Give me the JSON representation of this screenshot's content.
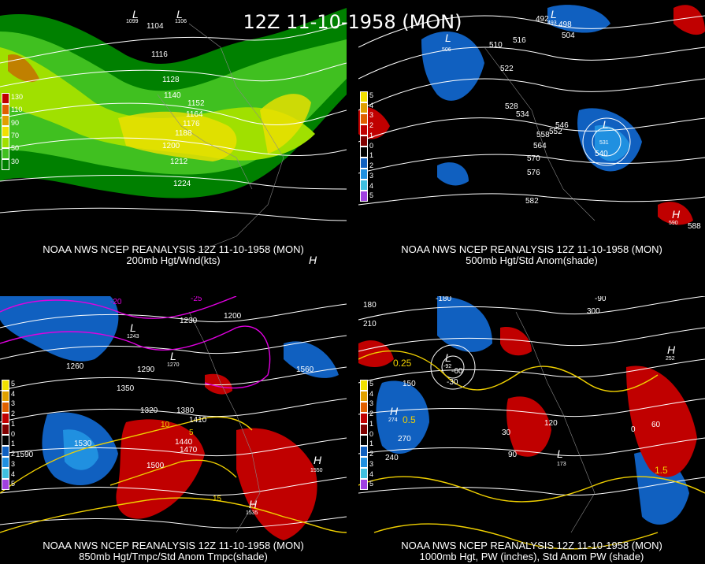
{
  "title": "12Z 11-10-1958 (MON)",
  "panels": [
    {
      "id": "p1",
      "caption_line1": "NOAA NWS NCEP REANALYSIS 12Z 11-10-1958 (MON)",
      "caption_line2": "200mb Hgt/Wnd(kts)",
      "legend": {
        "colors": [
          "#c00000",
          "#e06000",
          "#e0a000",
          "#f0e000",
          "#a0e000",
          "#40c020",
          "#008000"
        ],
        "ticks": [
          "130",
          "110",
          "90",
          "70",
          "50",
          "30"
        ]
      },
      "contour_labels": [
        "1104",
        "1116",
        "1128",
        "1140",
        "1152",
        "1164",
        "1176",
        "1188",
        "1200",
        "1212",
        "1224"
      ],
      "markers": [
        {
          "type": "L",
          "value": "1099"
        },
        {
          "type": "L",
          "value": "1106"
        },
        {
          "type": "H",
          "value": ""
        }
      ]
    },
    {
      "id": "p2",
      "caption_line1": "NOAA NWS NCEP REANALYSIS 12Z 11-10-1958 (MON)",
      "caption_line2": "500mb Hgt/Std Anom(shade)",
      "legend": {
        "colors": [
          "#f0e000",
          "#e0a000",
          "#e06000",
          "#c00000",
          "#800000",
          "#000000",
          "#1060c0",
          "#2090e0",
          "#40c0e0",
          "#a040e0"
        ],
        "ticks": [
          "5",
          "4",
          "3",
          "2",
          "1",
          "0",
          "1",
          "2",
          "3",
          "4",
          "5"
        ]
      },
      "contour_labels": [
        "492",
        "498",
        "504",
        "510",
        "516",
        "522",
        "528",
        "534",
        "540",
        "546",
        "552",
        "558",
        "564",
        "570",
        "576",
        "582",
        "588"
      ],
      "markers": [
        {
          "type": "L",
          "value": "506"
        },
        {
          "type": "L",
          "value": "493"
        },
        {
          "type": "L",
          "value": "531"
        },
        {
          "type": "H",
          "value": "590"
        }
      ]
    },
    {
      "id": "p3",
      "caption_line1": "NOAA NWS NCEP REANALYSIS 12Z 11-10-1958 (MON)",
      "caption_line2": "850mb Hgt/Tmpc/Std Anom Tmpc(shade)",
      "legend": {
        "colors": [
          "#f0e000",
          "#e0a000",
          "#e06000",
          "#c00000",
          "#800000",
          "#000000",
          "#1060c0",
          "#2090e0",
          "#40c0e0",
          "#a040e0"
        ],
        "ticks": [
          "5",
          "4",
          "3",
          "2",
          "1",
          "0",
          "1",
          "2",
          "3",
          "4",
          "5"
        ]
      },
      "contour_labels": [
        "1200",
        "1230",
        "1260",
        "1290",
        "1320",
        "1350",
        "1380",
        "1410",
        "1440",
        "1470",
        "1500",
        "1530",
        "1560",
        "1590"
      ],
      "temp_labels": [
        "-25",
        "-20",
        "10",
        "5",
        "15"
      ],
      "markers": [
        {
          "type": "L",
          "value": "1243"
        },
        {
          "type": "L",
          "value": "1270"
        },
        {
          "type": "H",
          "value": "1535"
        },
        {
          "type": "H",
          "value": "1550"
        }
      ]
    },
    {
      "id": "p4",
      "caption_line1": "NOAA NWS NCEP REANALYSIS 12Z 11-10-1958 (MON)",
      "caption_line2": "1000mb Hgt, PW (inches), Std Anom PW (shade)",
      "legend": {
        "colors": [
          "#f0e000",
          "#e0a000",
          "#e06000",
          "#c00000",
          "#800000",
          "#000000",
          "#1060c0",
          "#2090e0",
          "#40c0e0",
          "#a040e0"
        ],
        "ticks": [
          "5",
          "4",
          "3",
          "2",
          "1",
          "0",
          "1",
          "2",
          "3",
          "4",
          "5"
        ]
      },
      "contour_labels": [
        "-180",
        "-90",
        "-60",
        "-30",
        "0",
        "30",
        "60",
        "90",
        "120",
        "150",
        "180",
        "210",
        "240",
        "270",
        "300"
      ],
      "pw_labels": [
        "0.25",
        "0.5",
        "1.5"
      ],
      "markers": [
        {
          "type": "L",
          "value": "-92"
        },
        {
          "type": "L",
          "value": "173"
        },
        {
          "type": "H",
          "value": "274"
        },
        {
          "type": "H",
          "value": "252"
        }
      ]
    }
  ]
}
